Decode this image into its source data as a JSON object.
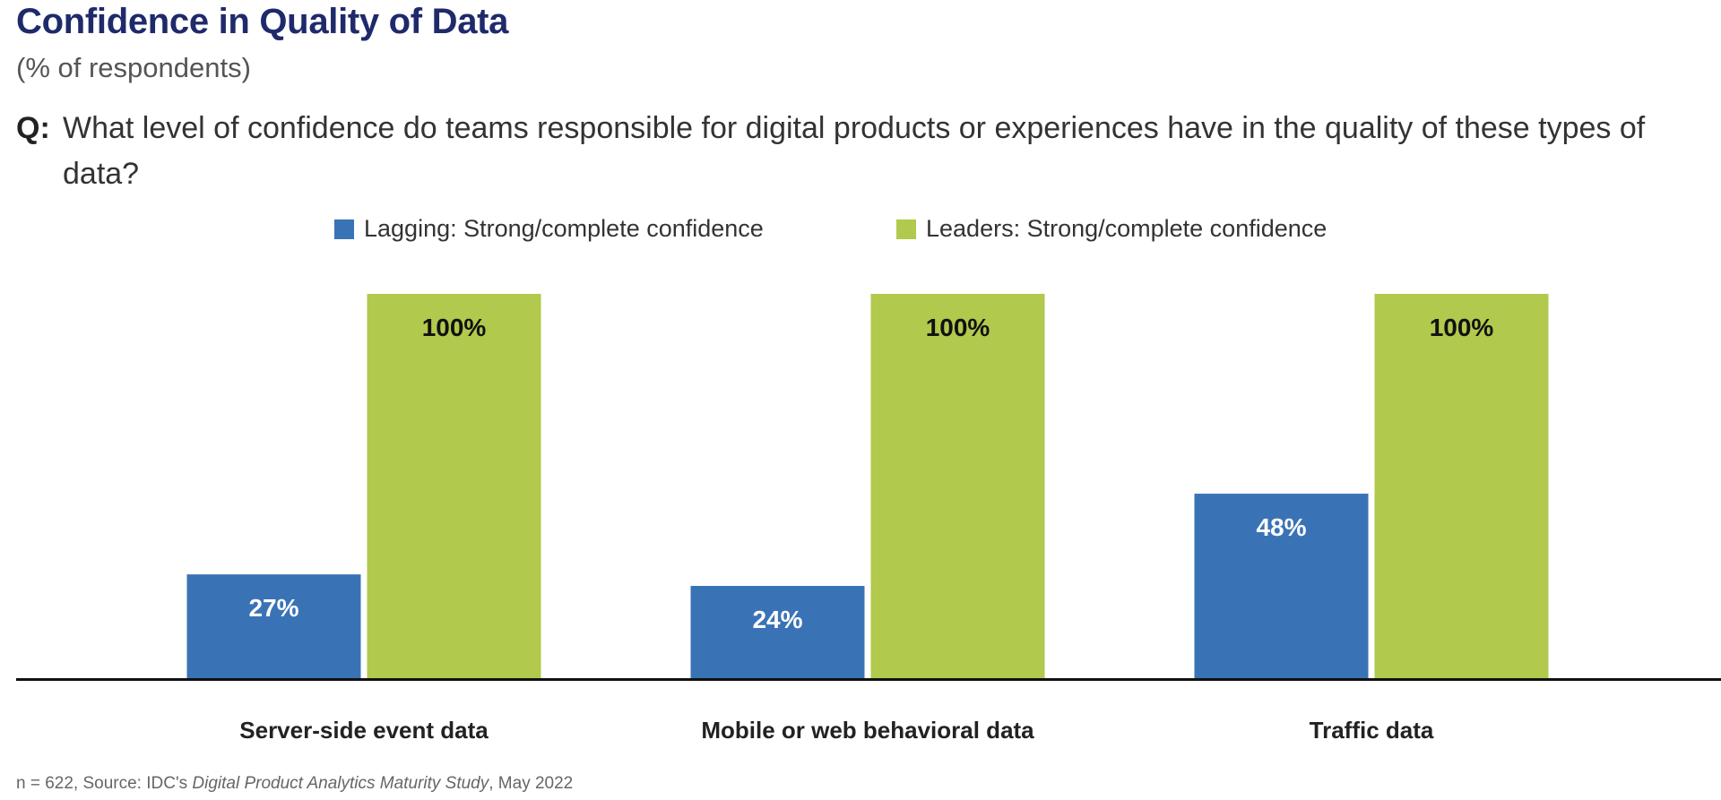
{
  "title": "Confidence in Quality of Data",
  "subtitle": "(% of respondents)",
  "question": {
    "prefix": "Q:",
    "text": "What level of confidence do teams responsible for digital products or experiences have in the quality of these types of data?"
  },
  "legend": [
    {
      "label": "Lagging: Strong/complete confidence",
      "color": "#3a73b5"
    },
    {
      "label": "Leaders: Strong/complete confidence",
      "color": "#b1c94c"
    }
  ],
  "chart_data": {
    "type": "bar",
    "categories": [
      "Server-side event data",
      "Mobile or web behavioral data",
      "Traffic data"
    ],
    "series": [
      {
        "name": "Lagging: Strong/complete confidence",
        "values": [
          27,
          24,
          48
        ],
        "color": "#3a73b5",
        "label_color": "#ffffff"
      },
      {
        "name": "Leaders: Strong/complete confidence",
        "values": [
          100,
          100,
          100
        ],
        "color": "#b1c94c",
        "label_color": "#111111"
      }
    ],
    "value_suffix": "%",
    "ylim": [
      0,
      100
    ]
  },
  "footnote": {
    "pre": "n = 622, Source: IDC's ",
    "italic": "Digital Product Analytics Maturity Study",
    "post": ", May 2022"
  }
}
